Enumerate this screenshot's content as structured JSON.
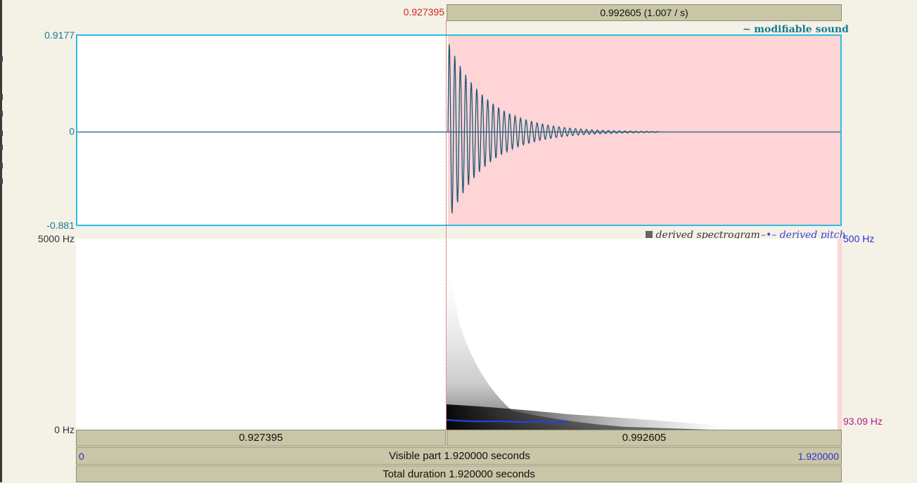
{
  "top_bar": {
    "cursor_time": "0.927395",
    "selection_label": "0.992605 (1.007 / s)"
  },
  "waveform": {
    "legend": "modifiable sound",
    "legend_icon": "tilde-icon",
    "y_max": "0.9177",
    "y_zero": "0",
    "y_min": "-0.881",
    "colors": {
      "border": "#2bbde6",
      "selection": "#ffd4d6",
      "wave": "#1b5a73"
    }
  },
  "spectrogram": {
    "legend_spec": "derived spectrogram",
    "legend_pitch": "derived pitch",
    "freq_max": "5000 Hz",
    "freq_min": "0 Hz",
    "pitch_max": "500 Hz",
    "pitch_value": "93.09 Hz"
  },
  "bottom": {
    "left_segment": "0.927395",
    "right_segment": "0.992605",
    "visible_start": "0",
    "visible_text": "Visible part 1.920000 seconds",
    "visible_end": "1.920000",
    "total_text": "Total duration 1.920000 seconds"
  }
}
